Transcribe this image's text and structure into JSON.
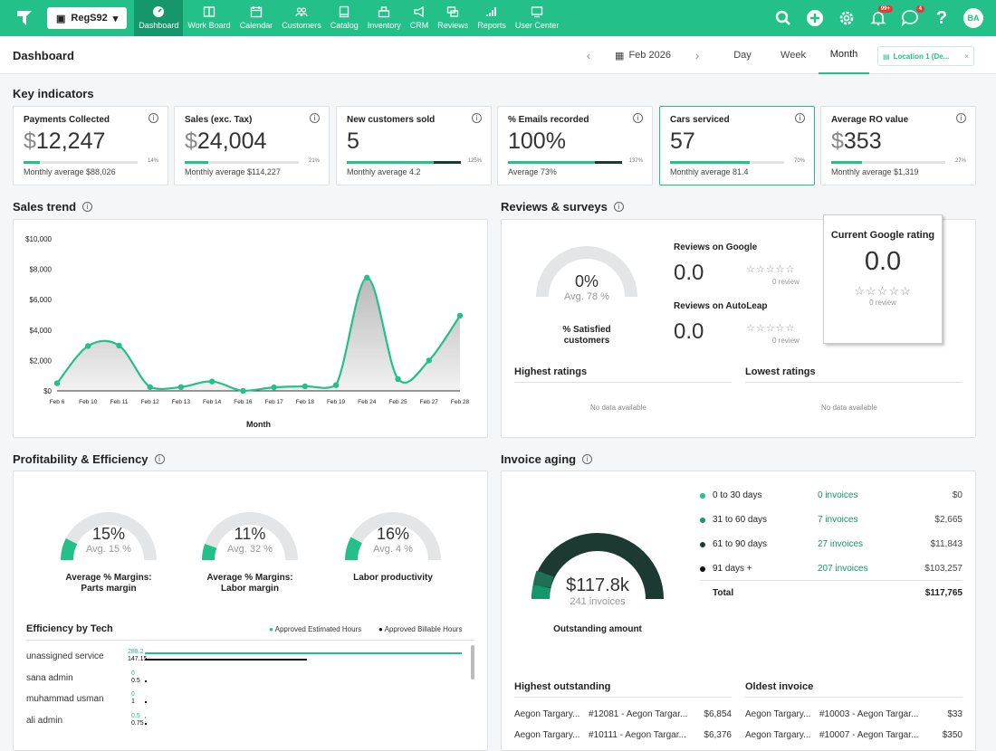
{
  "nav": {
    "shop": "RegS92",
    "items": [
      {
        "label": "Dashboard",
        "icon": "dashboard-icon",
        "active": true
      },
      {
        "label": "Work Board",
        "icon": "work-board-icon"
      },
      {
        "label": "Calendar",
        "icon": "calendar-icon"
      },
      {
        "label": "Customers",
        "icon": "customers-icon"
      },
      {
        "label": "Catalog",
        "icon": "catalog-icon"
      },
      {
        "label": "Inventory",
        "icon": "inventory-icon"
      },
      {
        "label": "CRM",
        "icon": "crm-icon"
      },
      {
        "label": "Reviews",
        "icon": "reviews-icon"
      },
      {
        "label": "Reports",
        "icon": "reports-icon"
      },
      {
        "label": "User Center",
        "icon": "user-center-icon"
      }
    ],
    "notif_badge": "99+",
    "chat_badge": "4",
    "avatar": "BA"
  },
  "header": {
    "title": "Dashboard",
    "date": "Feb 2026",
    "periods": [
      "Day",
      "Week",
      "Month"
    ],
    "active_period": "Month",
    "location": "Location 1 (De..."
  },
  "colors": {
    "brand": "#23c08a",
    "brand_dark": "#16966b",
    "gauge_dark": "#1c3a32"
  },
  "key_indicators": {
    "title": "Key indicators",
    "cards": [
      {
        "label": "Payments Collected",
        "currency": "$",
        "value": "12,247",
        "progress": 0.14,
        "pct": "14%",
        "avg": "Monthly average $88,026"
      },
      {
        "label": "Sales (exc. Tax)",
        "currency": "$",
        "value": "24,004",
        "progress": 0.21,
        "pct": "21%",
        "avg": "Monthly average $114,227"
      },
      {
        "label": "New customers sold",
        "currency": "",
        "value": "5",
        "progress": 1.0,
        "pct": "125%",
        "avg": "Monthly average 4.2"
      },
      {
        "label": "% Emails recorded",
        "currency": "",
        "value": "100%",
        "progress": 1.0,
        "pct": "137%",
        "avg": "Average 73%"
      },
      {
        "label": "Cars serviced",
        "currency": "",
        "value": "57",
        "progress": 0.7,
        "pct": "70%",
        "avg": "Monthly average 81.4"
      },
      {
        "label": "Average RO value",
        "currency": "$",
        "value": "353",
        "progress": 0.27,
        "pct": "27%",
        "avg": "Monthly average $1,319"
      }
    ]
  },
  "sales_trend": {
    "title": "Sales trend"
  },
  "chart_data": {
    "type": "area",
    "xlabel": "Month",
    "ylabel": "",
    "x": [
      "Feb 6",
      "Feb 10",
      "Feb 11",
      "Feb 12",
      "Feb 13",
      "Feb 14",
      "Feb 16",
      "Feb 17",
      "Feb 18",
      "Feb 19",
      "Feb 24",
      "Feb 25",
      "Feb 27",
      "Feb 28"
    ],
    "values": [
      500,
      2950,
      2980,
      250,
      250,
      620,
      0,
      230,
      300,
      380,
      7450,
      780,
      2000,
      4950
    ],
    "ylim": [
      0,
      10000
    ],
    "yticks": [
      "$0",
      "$2,000",
      "$4,000",
      "$6,000",
      "$8,000",
      "$10,000"
    ],
    "grid": false
  },
  "reviews": {
    "title": "Reviews & surveys",
    "satisfied": {
      "value": "0%",
      "avg": "Avg. 78 %",
      "label": "% Satisfied customers"
    },
    "google": {
      "title": "Reviews on Google",
      "value": "0.0",
      "count": "0 review"
    },
    "autoleap": {
      "title": "Reviews on AutoLeap",
      "value": "0.0",
      "count": "0 review"
    },
    "current_google": {
      "title": "Current Google rating",
      "value": "0.0",
      "count": "0 review"
    },
    "highest": "Highest ratings",
    "lowest": "Lowest ratings",
    "no_data": "No data available"
  },
  "profitability": {
    "title": "Profitability & Efficiency",
    "gauges": [
      {
        "value": "15%",
        "avg": "Avg. 15 %",
        "label": "Average % Margins: Parts margin",
        "fill": 0.15
      },
      {
        "value": "11%",
        "avg": "Avg. 32 %",
        "label": "Average % Margins: Labor margin",
        "fill": 0.11
      },
      {
        "value": "16%",
        "avg": "Avg. 4 %",
        "label": "Labor productivity",
        "fill": 0.16
      }
    ],
    "efficiency": {
      "title": "Efficiency by Tech",
      "legend_est": "Approved Estimated Hours",
      "legend_bill": "Approved Billable Hours",
      "rows": [
        {
          "name": "unassigned service",
          "est": "288.2",
          "bill": "147.15",
          "est_v": 288.2,
          "bill_v": 147.15
        },
        {
          "name": "sana admin",
          "est": "0",
          "bill": "0.5",
          "est_v": 0,
          "bill_v": 0.5
        },
        {
          "name": "muhammad usman",
          "est": "0",
          "bill": "1",
          "est_v": 0,
          "bill_v": 1
        },
        {
          "name": "ali admin",
          "est": "0.5",
          "bill": "0.75",
          "est_v": 0.5,
          "bill_v": 0.75
        }
      ]
    }
  },
  "invoice_aging": {
    "title": "Invoice aging",
    "amount": "$117.8k",
    "count": "241 invoices",
    "label": "Outstanding amount",
    "rows": [
      {
        "range": "0 to 30 days",
        "count": "0 invoices",
        "amount": "$0",
        "color": "#23c08a"
      },
      {
        "range": "31 to 60 days",
        "count": "7 invoices",
        "amount": "$2,665",
        "color": "#16966b"
      },
      {
        "range": "61 to 90 days",
        "count": "27 invoices",
        "amount": "$11,843",
        "color": "#1c3a32"
      },
      {
        "range": "91 days +",
        "count": "207 invoices",
        "amount": "$103,257",
        "color": "#111111"
      }
    ],
    "total_label": "Total",
    "total": "$117,765",
    "highest_title": "Highest outstanding",
    "oldest_title": "Oldest invoice",
    "highest": [
      {
        "name": "Aegon Targary...",
        "inv": "#12081 - Aegon Targar...",
        "amt": "$6,854"
      },
      {
        "name": "Aegon Targary...",
        "inv": "#10111 - Aegon Targar...",
        "amt": "$6,376"
      }
    ],
    "oldest": [
      {
        "name": "Aegon Targary...",
        "inv": "#10003 - Aegon Targar...",
        "amt": "$33"
      },
      {
        "name": "Aegon Targary...",
        "inv": "#10007 - Aegon Targar...",
        "amt": "$350"
      }
    ]
  }
}
